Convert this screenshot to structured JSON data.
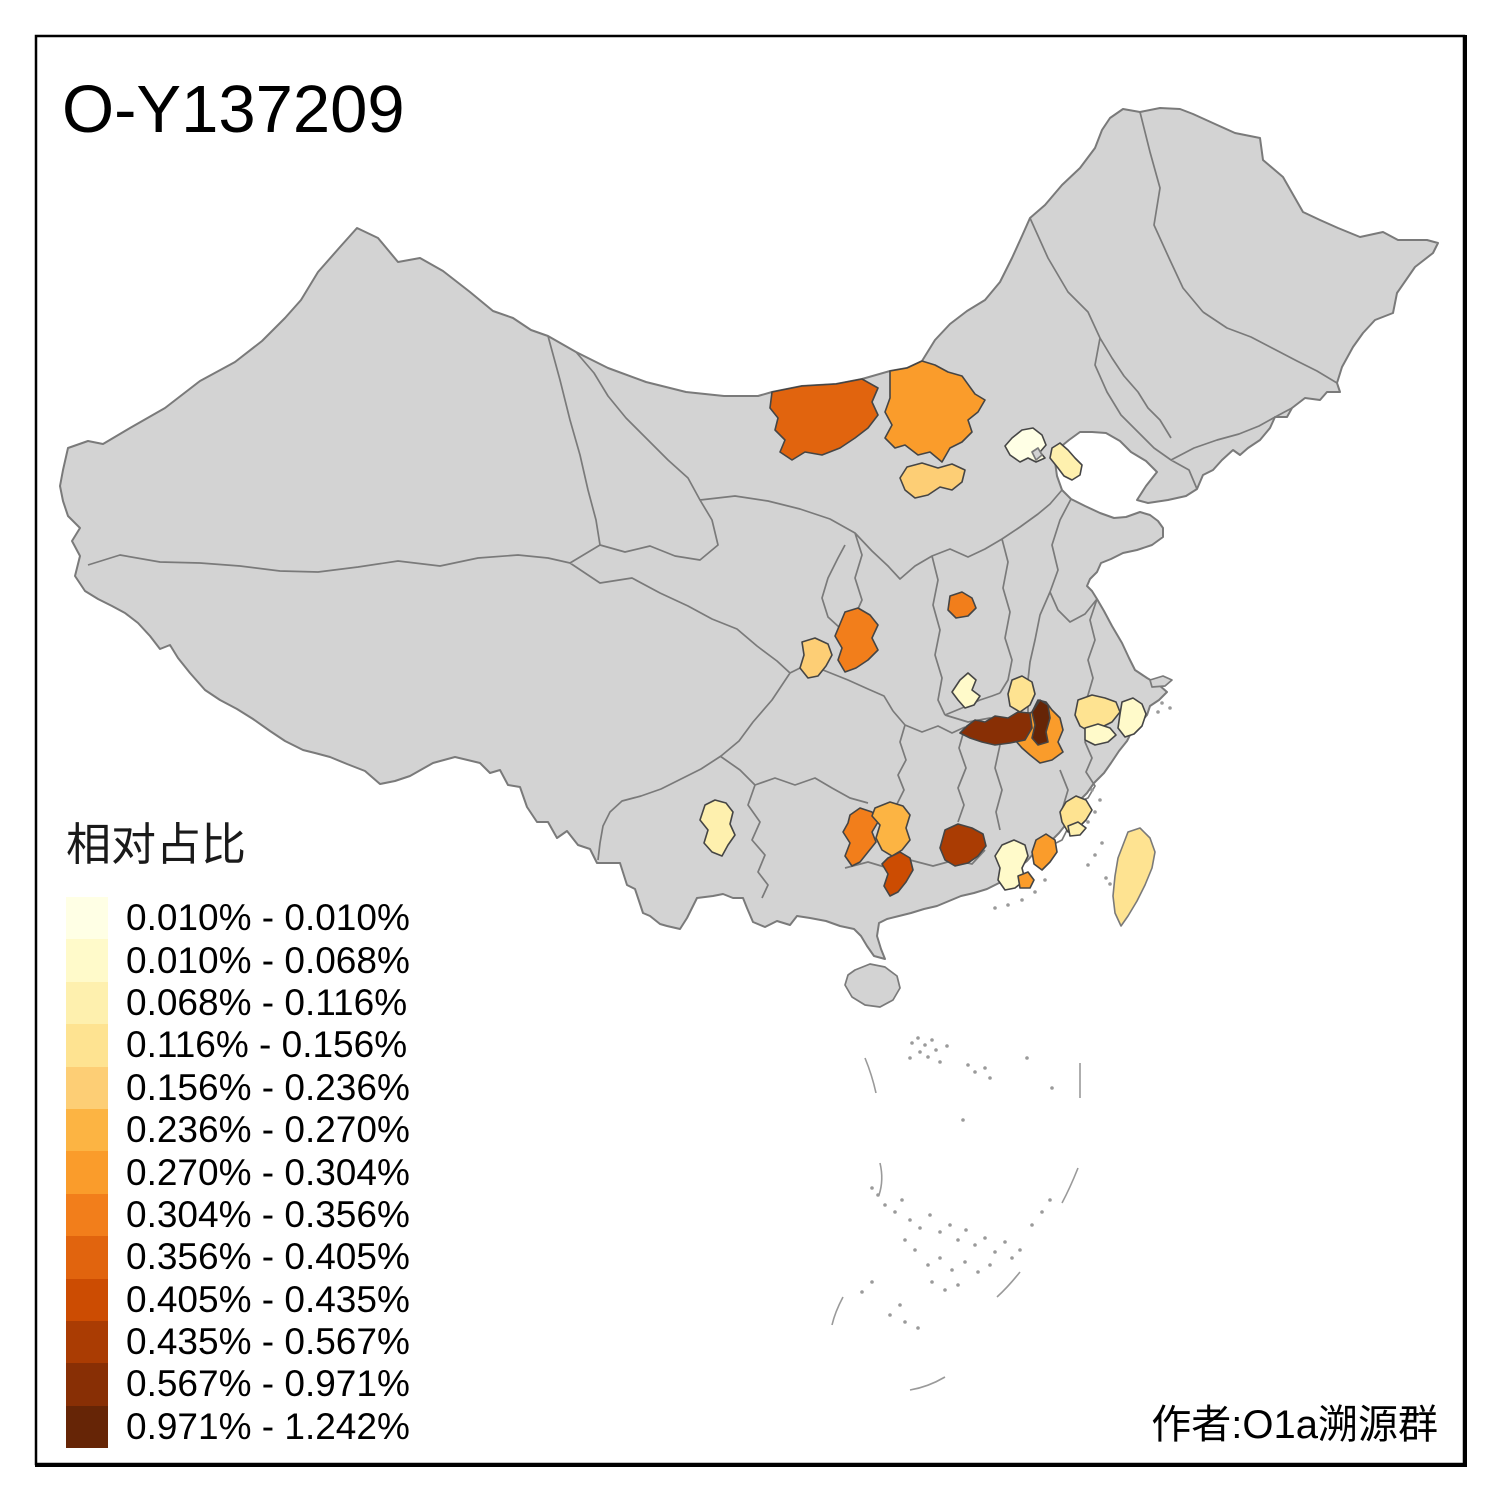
{
  "title": "O-Y137209",
  "attribution": "作者:O1a溯源群",
  "legend": {
    "title": "相对占比",
    "classes": [
      {
        "label": "0.010% - 0.010%",
        "color": "#FFFFE5"
      },
      {
        "label": "0.010% - 0.068%",
        "color": "#FFFACA"
      },
      {
        "label": "0.068% - 0.116%",
        "color": "#FEF0AE"
      },
      {
        "label": "0.116% - 0.156%",
        "color": "#FEE391"
      },
      {
        "label": "0.156% - 0.236%",
        "color": "#FDCE75"
      },
      {
        "label": "0.236% - 0.270%",
        "color": "#FCB443"
      },
      {
        "label": "0.270% - 0.304%",
        "color": "#FA9C2B"
      },
      {
        "label": "0.304% - 0.356%",
        "color": "#F27E1B"
      },
      {
        "label": "0.356% - 0.405%",
        "color": "#E1640E"
      },
      {
        "label": "0.405% - 0.435%",
        "color": "#CC4C02"
      },
      {
        "label": "0.435% - 0.567%",
        "color": "#AA3C03"
      },
      {
        "label": "0.567% - 0.971%",
        "color": "#882F05"
      },
      {
        "label": "0.971% - 1.242%",
        "color": "#662506"
      }
    ]
  },
  "map": {
    "background_color": "#FFFFFF",
    "land_color": "#D3D3D3",
    "province_border_color": "#7A7A7A",
    "region_border_color": "#454545",
    "frame_color": "#000000",
    "regions": [
      {
        "id": "inner-mongolia-west",
        "class": 9
      },
      {
        "id": "inner-mongolia-baotou",
        "class": 7
      },
      {
        "id": "inner-mongolia-ordos",
        "class": 5
      },
      {
        "id": "beijing",
        "class": 1
      },
      {
        "id": "tianjin",
        "class": 3
      },
      {
        "id": "gansu-qingyang",
        "class": 8
      },
      {
        "id": "ningxia-guyuan",
        "class": 8
      },
      {
        "id": "gansu-dingxi",
        "class": 5
      },
      {
        "id": "hubei-northwest",
        "class": 2
      },
      {
        "id": "henan-nanyang",
        "class": 4
      },
      {
        "id": "hubei-central-orange",
        "class": 7
      },
      {
        "id": "hubei-yichang-strip",
        "class": 12
      },
      {
        "id": "hubei-jingmen-dark",
        "class": 13
      },
      {
        "id": "anhui-hefei",
        "class": 4
      },
      {
        "id": "anhui-anqing",
        "class": 2
      },
      {
        "id": "zhejiang-hangzhou",
        "class": 2
      },
      {
        "id": "yunnan-kunming",
        "class": 3
      },
      {
        "id": "hunan-yongzhou",
        "class": 8
      },
      {
        "id": "guangxi-liuzhou",
        "class": 6
      },
      {
        "id": "guangxi-wuzhou",
        "class": 10
      },
      {
        "id": "guangdong-shaoguan",
        "class": 11
      },
      {
        "id": "guangdong-heyuan",
        "class": 2
      },
      {
        "id": "guangdong-coastal-patch",
        "class": 7
      },
      {
        "id": "guangdong-meizhou",
        "class": 7
      },
      {
        "id": "fujian-quanzhou",
        "class": 4
      },
      {
        "id": "fujian-quanzhou-south",
        "class": 3
      },
      {
        "id": "taiwan",
        "class": 4
      }
    ]
  }
}
